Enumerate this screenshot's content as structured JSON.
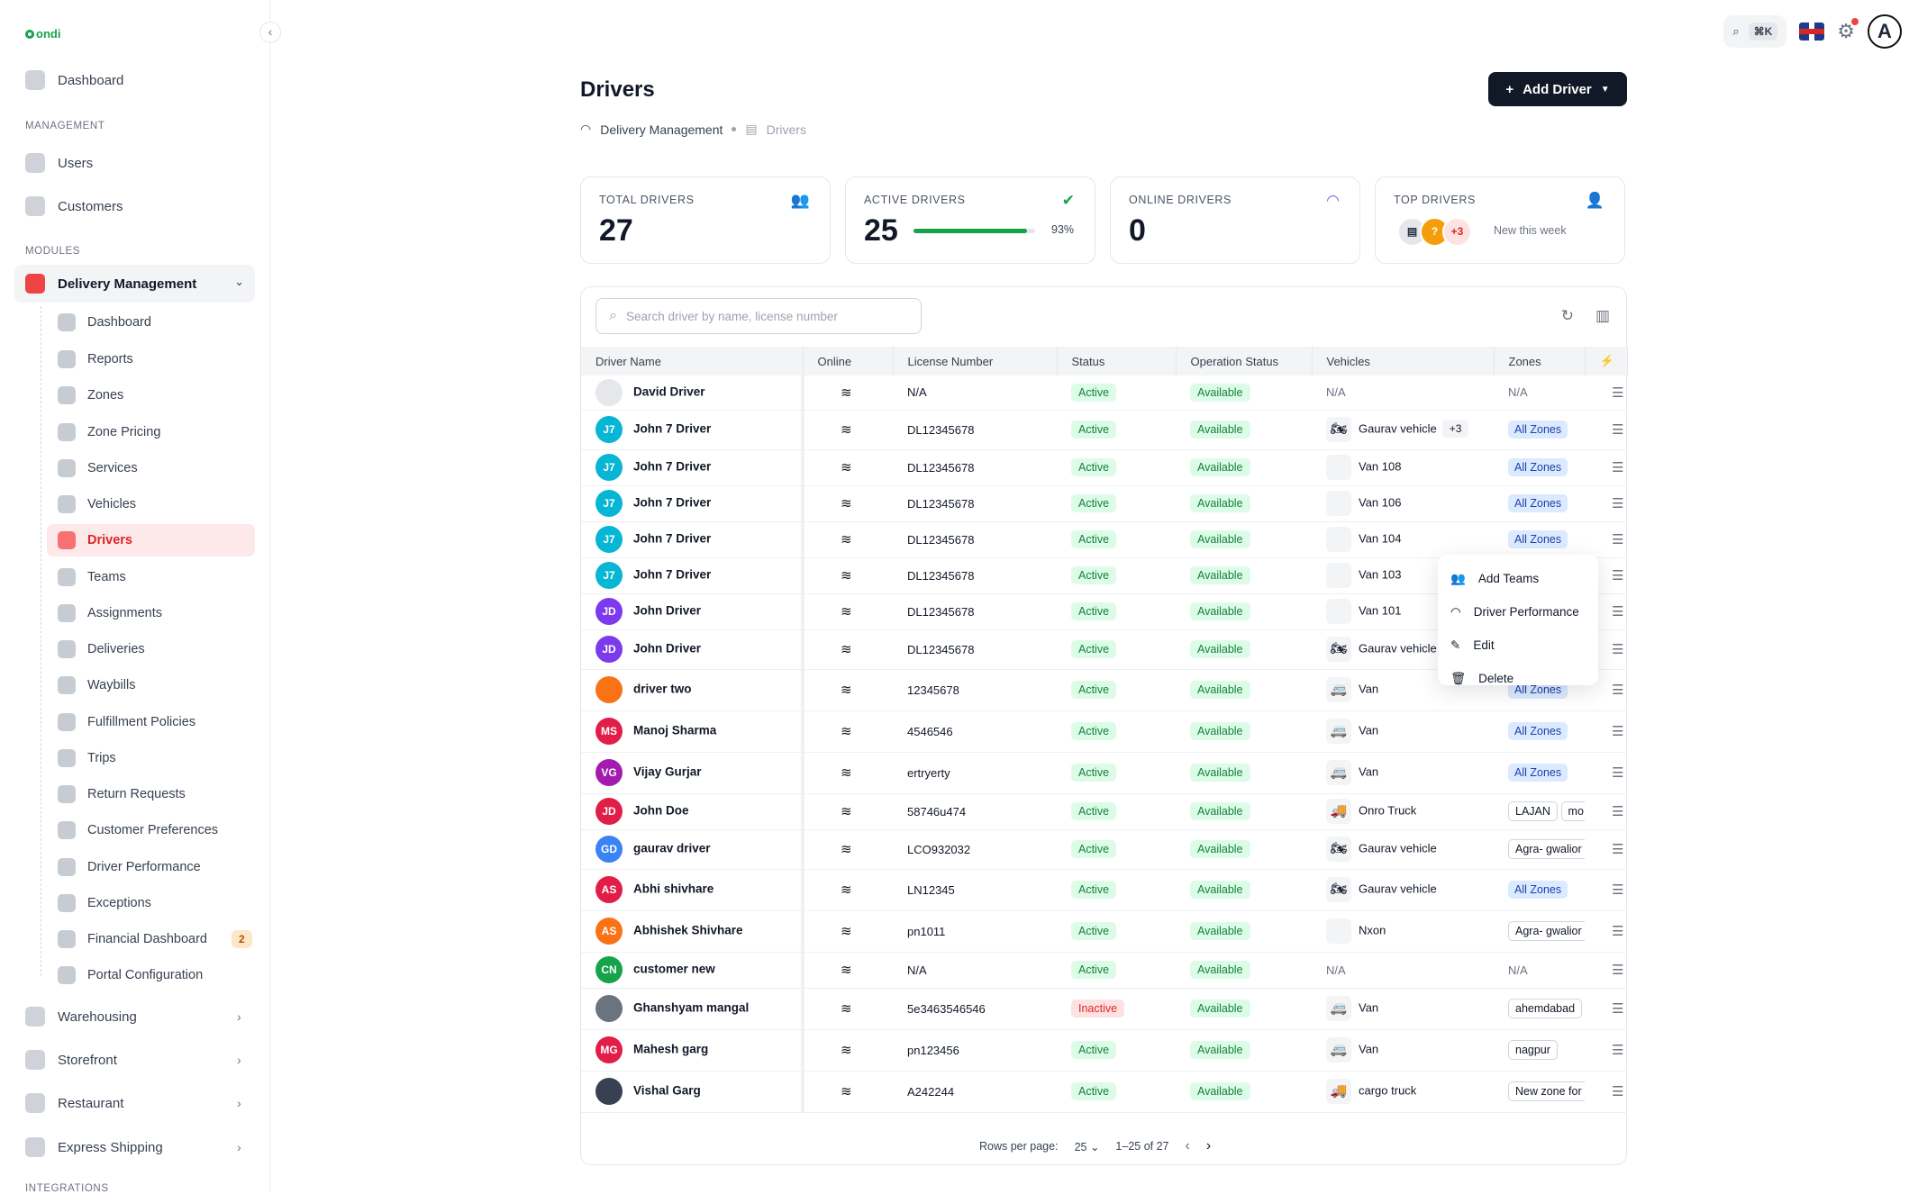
{
  "app": {
    "logo": "ondi"
  },
  "sidebar": {
    "dashboard": "Dashboard",
    "section_management": "MANAGEMENT",
    "users": "Users",
    "customers": "Customers",
    "section_modules": "MODULES",
    "delivery_group": "Delivery Management",
    "sub_items": [
      {
        "label": "Dashboard",
        "icon": "dashboard-icon"
      },
      {
        "label": "Reports",
        "icon": "reports-icon"
      },
      {
        "label": "Zones",
        "icon": "zones-icon"
      },
      {
        "label": "Zone Pricing",
        "icon": "pricing-icon"
      },
      {
        "label": "Services",
        "icon": "services-icon"
      },
      {
        "label": "Vehicles",
        "icon": "vehicles-icon"
      },
      {
        "label": "Drivers",
        "icon": "drivers-icon"
      },
      {
        "label": "Teams",
        "icon": "teams-icon"
      },
      {
        "label": "Assignments",
        "icon": "assignments-icon"
      },
      {
        "label": "Deliveries",
        "icon": "deliveries-icon"
      },
      {
        "label": "Waybills",
        "icon": "waybills-icon"
      },
      {
        "label": "Fulfillment Policies",
        "icon": "policies-icon"
      },
      {
        "label": "Trips",
        "icon": "trips-icon"
      },
      {
        "label": "Return Requests",
        "icon": "returns-icon"
      },
      {
        "label": "Customer Preferences",
        "icon": "preferences-icon"
      },
      {
        "label": "Driver Performance",
        "icon": "performance-icon"
      },
      {
        "label": "Exceptions",
        "icon": "exceptions-icon"
      },
      {
        "label": "Financial Dashboard",
        "icon": "financial-icon",
        "badge": "2"
      },
      {
        "label": "Portal Configuration",
        "icon": "config-icon"
      }
    ],
    "warehousing": "Warehousing",
    "storefront": "Storefront",
    "restaurant": "Restaurant",
    "express": "Express Shipping",
    "section_integrations": "INTEGRATIONS"
  },
  "topbar": {
    "shortcut": "⌘K",
    "avatar": "A"
  },
  "page": {
    "title": "Drivers",
    "crumb_parent": "Delivery Management",
    "crumb_current": "Drivers",
    "add_button": "Add Driver"
  },
  "stats": {
    "total_label": "TOTAL DRIVERS",
    "total_value": "27",
    "active_label": "ACTIVE DRIVERS",
    "active_value": "25",
    "active_pct": "93%",
    "active_fraction": 0.93,
    "online_label": "ONLINE DRIVERS",
    "online_value": "0",
    "top_label": "TOP DRIVERS",
    "top_more": "+3",
    "top_note": "New this week",
    "top_q": "?"
  },
  "table": {
    "search_placeholder": "Search driver by name, license number",
    "headers": [
      "Driver Name",
      "Online",
      "License Number",
      "Status",
      "Operation Status",
      "Vehicles",
      "Zones"
    ],
    "rows": [
      {
        "ini": "",
        "color": "#e5e7eb",
        "name": "David Driver",
        "lic": "N/A",
        "status": "Active",
        "op": "Available",
        "veh": "N/A",
        "vicon": "",
        "more": "",
        "zone": "N/A",
        "ztype": "text"
      },
      {
        "ini": "J7",
        "color": "#06b6d4",
        "name": "John 7 Driver",
        "lic": "DL12345678",
        "status": "Active",
        "op": "Available",
        "veh": "Gaurav vehicle",
        "vicon": "🏍",
        "more": "+3",
        "zone": "All Zones",
        "ztype": "blue"
      },
      {
        "ini": "J7",
        "color": "#06b6d4",
        "name": "John 7 Driver",
        "lic": "DL12345678",
        "status": "Active",
        "op": "Available",
        "veh": "Van 108",
        "vicon": " ",
        "more": "",
        "zone": "All Zones",
        "ztype": "blue"
      },
      {
        "ini": "J7",
        "color": "#06b6d4",
        "name": "John 7 Driver",
        "lic": "DL12345678",
        "status": "Active",
        "op": "Available",
        "veh": "Van 106",
        "vicon": " ",
        "more": "",
        "zone": "All Zones",
        "ztype": "blue"
      },
      {
        "ini": "J7",
        "color": "#06b6d4",
        "name": "John 7 Driver",
        "lic": "DL12345678",
        "status": "Active",
        "op": "Available",
        "veh": "Van 104",
        "vicon": " ",
        "more": "",
        "zone": "All Zones",
        "ztype": "blue"
      },
      {
        "ini": "J7",
        "color": "#06b6d4",
        "name": "John 7 Driver",
        "lic": "DL12345678",
        "status": "Active",
        "op": "Available",
        "veh": "Van 103",
        "vicon": " ",
        "more": "",
        "zone": "",
        "ztype": "blue"
      },
      {
        "ini": "JD",
        "color": "#7c3aed",
        "name": "John Driver",
        "lic": "DL12345678",
        "status": "Active",
        "op": "Available",
        "veh": "Van 101",
        "vicon": " ",
        "more": "",
        "zone": "",
        "ztype": "blue"
      },
      {
        "ini": "JD",
        "color": "#7c3aed",
        "name": "John Driver",
        "lic": "DL12345678",
        "status": "Active",
        "op": "Available",
        "veh": "Gaurav vehicle",
        "vicon": "🏍",
        "more": "",
        "zone": "",
        "ztype": "blue"
      },
      {
        "ini": "",
        "color": "#f97316",
        "name": "driver two",
        "lic": "12345678",
        "status": "Active",
        "op": "Available",
        "veh": "Van",
        "vicon": "🚐",
        "more": "",
        "zone": "All Zones",
        "ztype": "blue"
      },
      {
        "ini": "MS",
        "color": "#e11d48",
        "name": "Manoj Sharma",
        "lic": "4546546",
        "status": "Active",
        "op": "Available",
        "veh": "Van",
        "vicon": "🚐",
        "more": "",
        "zone": "All Zones",
        "ztype": "blue"
      },
      {
        "ini": "VG",
        "color": "#a21caf",
        "name": "Vijay Gurjar",
        "lic": "ertryerty",
        "status": "Active",
        "op": "Available",
        "veh": "Van",
        "vicon": "🚐",
        "more": "",
        "zone": "All Zones",
        "ztype": "blue"
      },
      {
        "ini": "JD",
        "color": "#e11d48",
        "name": "John Doe",
        "lic": "58746u474",
        "status": "Active",
        "op": "Available",
        "veh": "Onro Truck",
        "vicon": "🚚",
        "more": "",
        "zone": "LAJAN",
        "ztype": "outline",
        "zone2": "mo"
      },
      {
        "ini": "GD",
        "color": "#3b82f6",
        "name": "gaurav driver",
        "lic": "LCO932032",
        "status": "Active",
        "op": "Available",
        "veh": "Gaurav vehicle",
        "vicon": "🏍",
        "more": "",
        "zone": "Agra- gwalior",
        "ztype": "outline"
      },
      {
        "ini": "AS",
        "color": "#e11d48",
        "name": "Abhi shivhare",
        "lic": "LN12345",
        "status": "Active",
        "op": "Available",
        "veh": "Gaurav vehicle",
        "vicon": "🏍",
        "more": "",
        "zone": "All Zones",
        "ztype": "blue"
      },
      {
        "ini": "AS",
        "color": "#f97316",
        "name": "Abhishek Shivhare",
        "lic": "pn1011",
        "status": "Active",
        "op": "Available",
        "veh": "Nxon",
        "vicon": " ",
        "more": "",
        "zone": "Agra- gwalior",
        "ztype": "outline"
      },
      {
        "ini": "CN",
        "color": "#16a34a",
        "name": "customer new",
        "lic": "N/A",
        "status": "Active",
        "op": "Available",
        "veh": "N/A",
        "vicon": "",
        "more": "",
        "zone": "N/A",
        "ztype": "text"
      },
      {
        "ini": "",
        "color": "#6b7280",
        "name": "Ghanshyam mangal",
        "lic": "5e3463546546",
        "status": "Inactive",
        "op": "Available",
        "veh": "Van",
        "vicon": "🚐",
        "more": "",
        "zone": "ahemdabad",
        "ztype": "outline"
      },
      {
        "ini": "MG",
        "color": "#e11d48",
        "name": "Mahesh garg",
        "lic": "pn123456",
        "status": "Active",
        "op": "Available",
        "veh": "Van",
        "vicon": "🚐",
        "more": "",
        "zone": "nagpur",
        "ztype": "outline"
      },
      {
        "ini": "",
        "color": "#374151",
        "name": "Vishal Garg",
        "lic": "A242244",
        "status": "Active",
        "op": "Available",
        "veh": "cargo truck",
        "vicon": "🚚",
        "more": "",
        "zone": "New zone for",
        "ztype": "outline"
      }
    ],
    "row_heights": [
      38,
      44,
      40,
      40,
      40,
      40,
      40,
      44,
      46,
      46,
      46,
      40,
      44,
      46,
      46,
      40,
      46,
      46,
      46
    ]
  },
  "context_menu": [
    "Add Teams",
    "Driver Performance",
    "Edit",
    "Delete"
  ],
  "pagination": {
    "rows_label": "Rows per page:",
    "rows_value": "25",
    "range": "1–25 of 27"
  }
}
